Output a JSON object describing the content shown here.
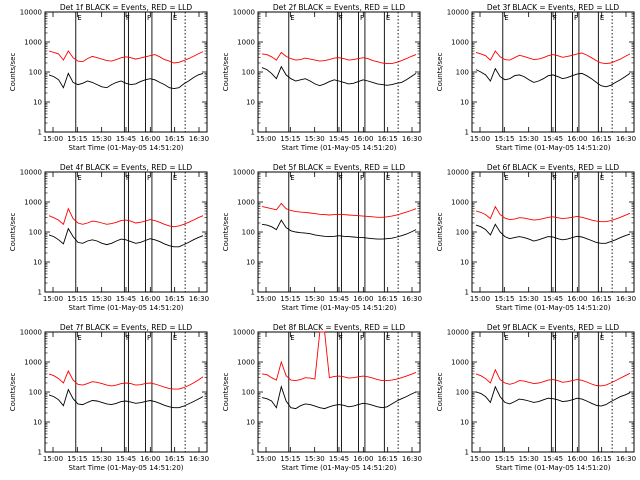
{
  "chart_data": {
    "type": "line",
    "scale": "log",
    "ylim": [
      1,
      10000
    ],
    "ylabel": "Counts/sec",
    "xlabel": "Start Time (01-May-05 14:51:20)",
    "x_tick_labels": [
      "15:00",
      "15:15",
      "15:30",
      "15:45",
      "16:00",
      "16:15",
      "16:30"
    ],
    "y_tick_labels": [
      "1",
      "10",
      "100",
      "1000",
      "10000"
    ],
    "marker_labels": [
      "E",
      "F",
      "F",
      "E"
    ],
    "colors": {
      "events": "#000000",
      "lld": "#ff0000"
    },
    "panels": [
      {
        "title": "Det 1f BLACK = Events, RED = LLD",
        "series": [
          {
            "name": "Events",
            "values": [
              80,
              70,
              55,
              30,
              90,
              45,
              38,
              42,
              50,
              45,
              38,
              32,
              30,
              38,
              45,
              50,
              42,
              38,
              40,
              48,
              55,
              60,
              55,
              45,
              38,
              30,
              28,
              30,
              40,
              50,
              65,
              80,
              90
            ]
          },
          {
            "name": "LLD",
            "values": [
              500,
              450,
              400,
              250,
              500,
              300,
              230,
              220,
              280,
              330,
              300,
              270,
              240,
              230,
              260,
              300,
              320,
              300,
              270,
              290,
              320,
              350,
              380,
              320,
              260,
              230,
              200,
              210,
              240,
              280,
              330,
              400,
              480
            ]
          }
        ]
      },
      {
        "title": "Det 2f BLACK = Events, RED = LLD",
        "series": [
          {
            "name": "Events",
            "values": [
              140,
              120,
              90,
              60,
              150,
              80,
              60,
              50,
              55,
              60,
              50,
              40,
              35,
              40,
              48,
              55,
              50,
              45,
              40,
              42,
              48,
              55,
              50,
              45,
              40,
              38,
              36,
              38,
              42,
              45,
              55,
              70,
              90
            ]
          },
          {
            "name": "LLD",
            "values": [
              400,
              380,
              320,
              250,
              450,
              330,
              280,
              250,
              260,
              290,
              270,
              250,
              230,
              240,
              260,
              290,
              300,
              280,
              250,
              260,
              280,
              300,
              280,
              240,
              220,
              200,
              190,
              190,
              210,
              240,
              280,
              330,
              380
            ]
          }
        ]
      },
      {
        "title": "Det 3f BLACK = Events, RED = LLD",
        "series": [
          {
            "name": "Events",
            "values": [
              120,
              100,
              80,
              50,
              130,
              70,
              55,
              60,
              75,
              80,
              70,
              55,
              45,
              50,
              60,
              75,
              80,
              70,
              60,
              65,
              75,
              85,
              90,
              75,
              60,
              45,
              35,
              32,
              36,
              45,
              55,
              70,
              90
            ]
          },
          {
            "name": "LLD",
            "values": [
              450,
              400,
              350,
              250,
              500,
              320,
              260,
              250,
              300,
              360,
              330,
              290,
              260,
              270,
              300,
              350,
              380,
              350,
              310,
              330,
              360,
              400,
              430,
              370,
              300,
              240,
              200,
              190,
              200,
              230,
              270,
              330,
              400
            ]
          }
        ]
      },
      {
        "title": "Det 4f BLACK = Events, RED = LLD",
        "series": [
          {
            "name": "Events",
            "values": [
              80,
              70,
              55,
              40,
              130,
              70,
              45,
              42,
              50,
              55,
              50,
              42,
              38,
              42,
              50,
              58,
              55,
              48,
              42,
              45,
              52,
              60,
              55,
              48,
              40,
              35,
              32,
              32,
              38,
              45,
              55,
              65,
              75
            ]
          },
          {
            "name": "LLD",
            "values": [
              350,
              300,
              250,
              180,
              600,
              280,
              200,
              180,
              200,
              230,
              220,
              200,
              180,
              190,
              210,
              240,
              250,
              230,
              200,
              210,
              230,
              260,
              240,
              210,
              180,
              160,
              150,
              160,
              180,
              210,
              250,
              300,
              350
            ]
          }
        ]
      },
      {
        "title": "Det 5f BLACK = Events, RED = LLD",
        "series": [
          {
            "name": "Events",
            "values": [
              180,
              170,
              150,
              120,
              250,
              140,
              110,
              100,
              95,
              92,
              88,
              80,
              75,
              72,
              70,
              72,
              75,
              72,
              70,
              68,
              66,
              65,
              62,
              60,
              58,
              58,
              60,
              62,
              68,
              75,
              85,
              100,
              120
            ]
          },
          {
            "name": "LLD",
            "values": [
              700,
              650,
              600,
              550,
              900,
              600,
              520,
              480,
              460,
              450,
              430,
              410,
              390,
              380,
              370,
              380,
              390,
              380,
              370,
              360,
              350,
              340,
              330,
              320,
              310,
              310,
              320,
              340,
              370,
              410,
              460,
              520,
              600
            ]
          }
        ]
      },
      {
        "title": "Det 6f BLACK = Events, RED = LLD",
        "series": [
          {
            "name": "Events",
            "values": [
              170,
              150,
              120,
              80,
              180,
              100,
              70,
              60,
              65,
              70,
              65,
              58,
              50,
              55,
              62,
              70,
              68,
              60,
              55,
              58,
              65,
              72,
              68,
              60,
              52,
              45,
              42,
              42,
              48,
              55,
              65,
              75,
              85
            ]
          },
          {
            "name": "LLD",
            "values": [
              500,
              450,
              380,
              280,
              700,
              380,
              290,
              260,
              270,
              300,
              290,
              270,
              250,
              260,
              280,
              310,
              320,
              300,
              280,
              290,
              310,
              330,
              310,
              280,
              250,
              230,
              220,
              220,
              240,
              270,
              310,
              360,
              420
            ]
          }
        ]
      },
      {
        "title": "Det 7f BLACK = Events, RED = LLD",
        "series": [
          {
            "name": "Events",
            "values": [
              80,
              70,
              55,
              35,
              120,
              60,
              40,
              38,
              45,
              52,
              50,
              45,
              40,
              38,
              42,
              48,
              50,
              46,
              42,
              44,
              48,
              52,
              48,
              42,
              36,
              32,
              30,
              30,
              34,
              40,
              48,
              58,
              70
            ]
          },
          {
            "name": "LLD",
            "values": [
              400,
              350,
              280,
              200,
              500,
              250,
              180,
              170,
              190,
              220,
              210,
              190,
              170,
              160,
              170,
              190,
              200,
              190,
              170,
              175,
              190,
              200,
              185,
              165,
              145,
              130,
              125,
              125,
              140,
              165,
              200,
              250,
              320
            ]
          }
        ]
      },
      {
        "title": "Det 8f BLACK = Events, RED = LLD",
        "series": [
          {
            "name": "Events",
            "values": [
              65,
              60,
              50,
              30,
              150,
              50,
              30,
              28,
              35,
              40,
              38,
              34,
              30,
              28,
              32,
              36,
              38,
              36,
              32,
              34,
              38,
              42,
              40,
              36,
              32,
              30,
              32,
              40,
              50,
              60,
              70,
              85,
              100
            ]
          },
          {
            "name": "LLD",
            "values": [
              400,
              380,
              300,
              250,
              1000,
              350,
              250,
              240,
              260,
              300,
              290,
              270,
              10000,
              10000,
              300,
              330,
              340,
              320,
              290,
              300,
              320,
              340,
              320,
              290,
              260,
              240,
              240,
              250,
              270,
              300,
              340,
              390,
              450
            ]
          }
        ]
      },
      {
        "title": "Det 9f BLACK = Events, RED = LLD",
        "series": [
          {
            "name": "Events",
            "values": [
              100,
              90,
              70,
              45,
              150,
              70,
              45,
              40,
              48,
              58,
              55,
              50,
              45,
              48,
              55,
              62,
              60,
              55,
              48,
              50,
              55,
              62,
              58,
              50,
              42,
              36,
              34,
              38,
              48,
              58,
              70,
              80,
              95
            ]
          },
          {
            "name": "LLD",
            "values": [
              400,
              350,
              280,
              200,
              550,
              260,
              200,
              180,
              200,
              240,
              230,
              210,
              190,
              200,
              220,
              250,
              260,
              240,
              210,
              220,
              240,
              260,
              245,
              215,
              185,
              165,
              160,
              170,
              200,
              240,
              290,
              350,
              420
            ]
          }
        ]
      }
    ]
  }
}
